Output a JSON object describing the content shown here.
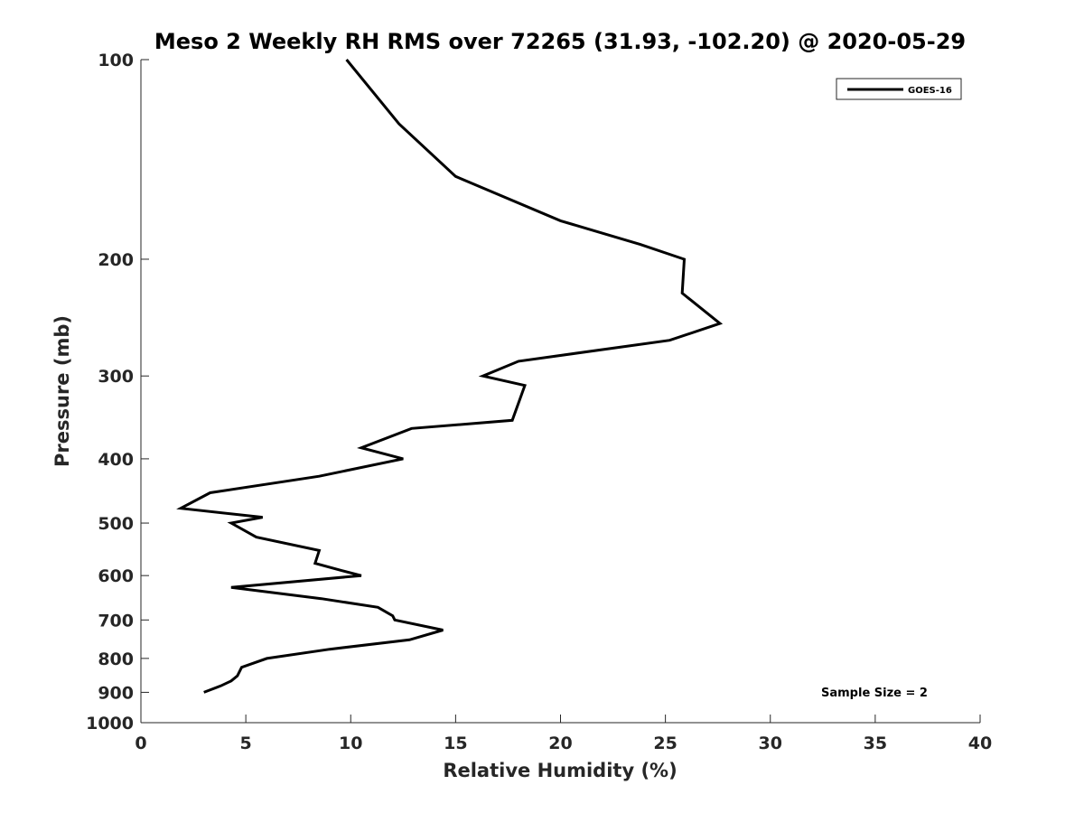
{
  "chart_data": {
    "type": "line",
    "title": "Meso 2 Weekly RH RMS over 72265 (31.93, -102.20) @ 2020-05-29",
    "xlabel": "Relative Humidity (%)",
    "ylabel": "Pressure (mb)",
    "xlim": [
      0,
      40
    ],
    "ylim": [
      100,
      1000
    ],
    "y_scale": "log",
    "y_reversed": true,
    "xticks": [
      0,
      5,
      10,
      15,
      20,
      25,
      30,
      35,
      40
    ],
    "yticks": [
      100,
      200,
      300,
      400,
      500,
      600,
      700,
      800,
      900,
      1000
    ],
    "grid": false,
    "legend_position": "top-right",
    "annotation": "Sample Size = 2",
    "series": [
      {
        "name": "GOES-16",
        "color": "#000000",
        "points": [
          {
            "x": 9.8,
            "y": 100
          },
          {
            "x": 12.3,
            "y": 125
          },
          {
            "x": 15.0,
            "y": 150
          },
          {
            "x": 20.0,
            "y": 175
          },
          {
            "x": 23.8,
            "y": 190
          },
          {
            "x": 25.9,
            "y": 200
          },
          {
            "x": 25.8,
            "y": 225
          },
          {
            "x": 27.6,
            "y": 250
          },
          {
            "x": 25.2,
            "y": 265
          },
          {
            "x": 18.0,
            "y": 285
          },
          {
            "x": 16.3,
            "y": 300
          },
          {
            "x": 18.3,
            "y": 310
          },
          {
            "x": 17.7,
            "y": 350
          },
          {
            "x": 12.9,
            "y": 360
          },
          {
            "x": 10.5,
            "y": 385
          },
          {
            "x": 12.5,
            "y": 400
          },
          {
            "x": 8.5,
            "y": 425
          },
          {
            "x": 3.3,
            "y": 450
          },
          {
            "x": 1.9,
            "y": 475
          },
          {
            "x": 5.8,
            "y": 490
          },
          {
            "x": 4.3,
            "y": 500
          },
          {
            "x": 5.5,
            "y": 525
          },
          {
            "x": 8.5,
            "y": 550
          },
          {
            "x": 8.3,
            "y": 575
          },
          {
            "x": 9.6,
            "y": 590
          },
          {
            "x": 10.5,
            "y": 600
          },
          {
            "x": 4.3,
            "y": 625
          },
          {
            "x": 8.6,
            "y": 650
          },
          {
            "x": 11.3,
            "y": 670
          },
          {
            "x": 12.0,
            "y": 690
          },
          {
            "x": 12.1,
            "y": 700
          },
          {
            "x": 14.4,
            "y": 725
          },
          {
            "x": 12.8,
            "y": 750
          },
          {
            "x": 9.0,
            "y": 775
          },
          {
            "x": 6.0,
            "y": 800
          },
          {
            "x": 4.8,
            "y": 825
          },
          {
            "x": 4.6,
            "y": 850
          },
          {
            "x": 4.3,
            "y": 865
          },
          {
            "x": 3.8,
            "y": 880
          },
          {
            "x": 3.0,
            "y": 900
          }
        ]
      }
    ]
  }
}
